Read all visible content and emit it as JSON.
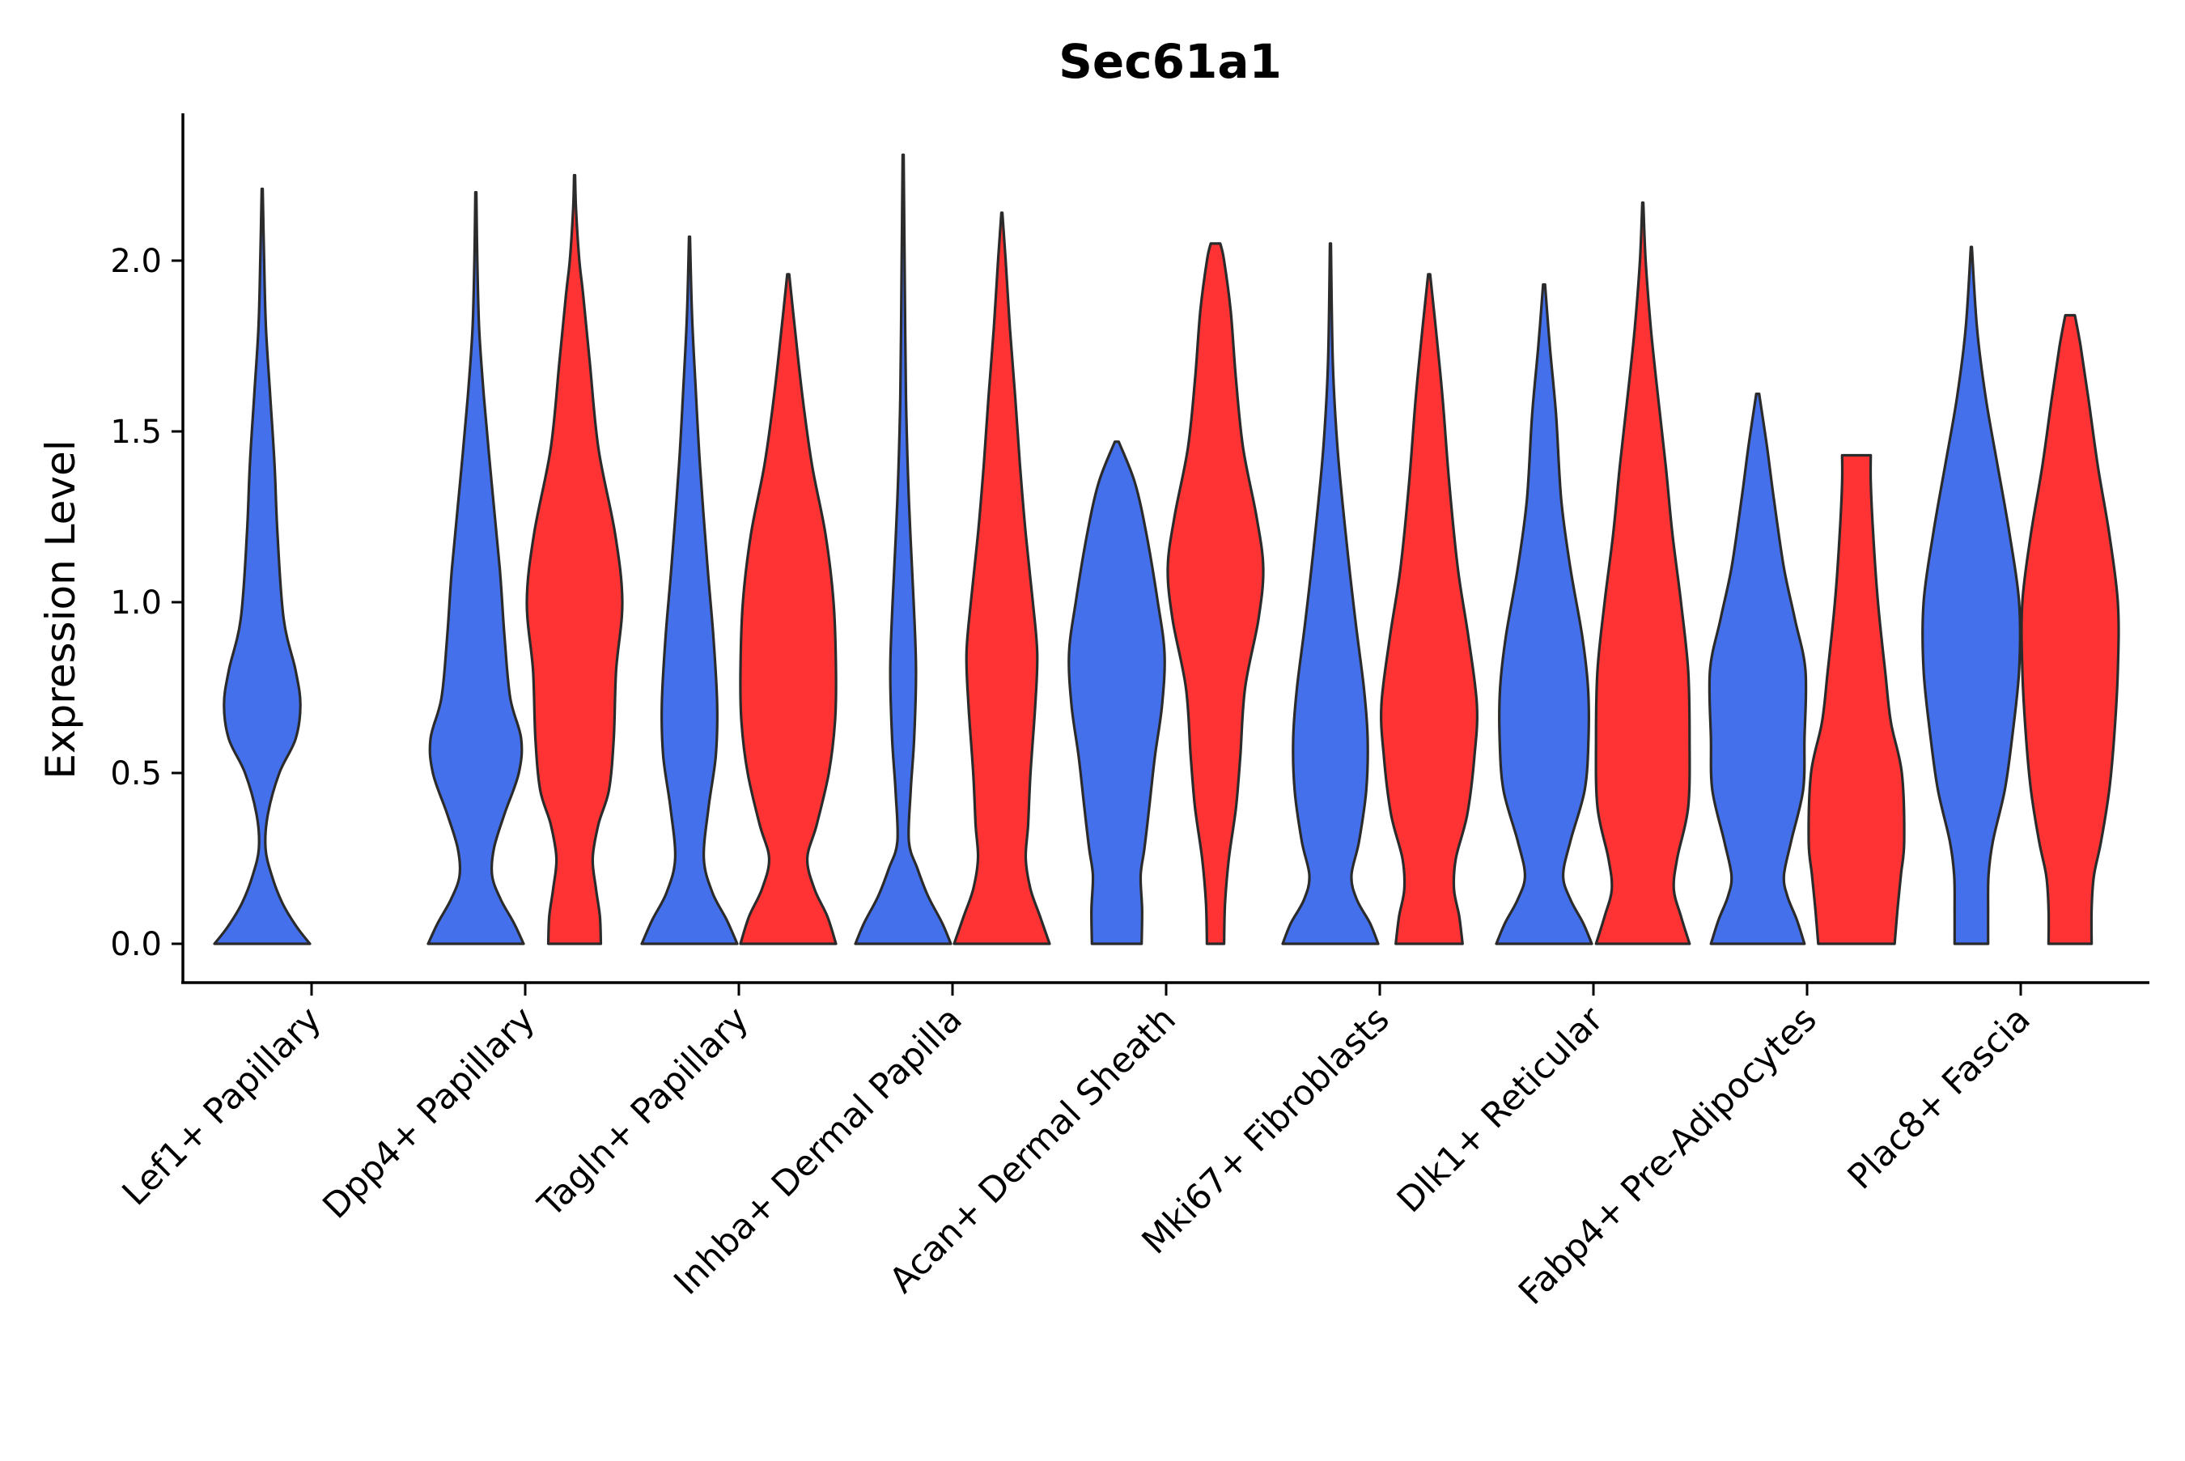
{
  "chart_data": {
    "type": "violin",
    "title": "Sec61a1",
    "xlabel": "",
    "ylabel": "Expression Level",
    "ylim": [
      -0.12,
      2.43
    ],
    "yticks": [
      0.0,
      0.5,
      1.0,
      1.5,
      2.0
    ],
    "ytick_labels": [
      "0.0",
      "0.5",
      "1.0",
      "1.5",
      "2.0"
    ],
    "grid": false,
    "legend": "none",
    "series": [
      {
        "name": "group-blue",
        "color": "#4470EC"
      },
      {
        "name": "group-red",
        "color": "#FF3333"
      }
    ],
    "categories": [
      "Lef1+ Papillary",
      "Dpp4+ Papillary",
      "Tagln+ Papillary",
      "Inhba+ Dermal Papilla",
      "Acan+ Dermal Sheath",
      "Mki67+ Fibroblasts",
      "Dlk1+ Reticular",
      "Fabp4+ Pre-Adipocytes",
      "Plac8+ Fascia"
    ],
    "violins": [
      {
        "category": "Lef1+ Papillary",
        "side": "blue",
        "max": 2.21,
        "profile": [
          [
            0.0,
            1.0
          ],
          [
            0.05,
            0.72
          ],
          [
            0.12,
            0.42
          ],
          [
            0.2,
            0.2
          ],
          [
            0.28,
            0.07
          ],
          [
            0.38,
            0.12
          ],
          [
            0.5,
            0.36
          ],
          [
            0.6,
            0.7
          ],
          [
            0.7,
            0.8
          ],
          [
            0.8,
            0.7
          ],
          [
            0.95,
            0.45
          ],
          [
            1.2,
            0.32
          ],
          [
            1.4,
            0.26
          ],
          [
            1.6,
            0.17
          ],
          [
            1.8,
            0.08
          ],
          [
            2.0,
            0.04
          ],
          [
            2.21,
            0.01
          ]
        ]
      },
      {
        "category": "Dpp4+ Papillary",
        "side": "blue",
        "max": 2.2,
        "profile": [
          [
            0.0,
            1.0
          ],
          [
            0.06,
            0.8
          ],
          [
            0.13,
            0.52
          ],
          [
            0.2,
            0.34
          ],
          [
            0.28,
            0.38
          ],
          [
            0.38,
            0.6
          ],
          [
            0.5,
            0.9
          ],
          [
            0.6,
            0.95
          ],
          [
            0.72,
            0.72
          ],
          [
            0.9,
            0.6
          ],
          [
            1.1,
            0.5
          ],
          [
            1.35,
            0.33
          ],
          [
            1.6,
            0.17
          ],
          [
            1.8,
            0.07
          ],
          [
            2.0,
            0.03
          ],
          [
            2.2,
            0.01
          ]
        ]
      },
      {
        "category": "Dpp4+ Papillary",
        "side": "red",
        "max": 2.25,
        "profile": [
          [
            0.0,
            0.55
          ],
          [
            0.08,
            0.53
          ],
          [
            0.16,
            0.45
          ],
          [
            0.25,
            0.38
          ],
          [
            0.35,
            0.5
          ],
          [
            0.45,
            0.72
          ],
          [
            0.6,
            0.82
          ],
          [
            0.8,
            0.87
          ],
          [
            1.0,
            1.0
          ],
          [
            1.2,
            0.85
          ],
          [
            1.45,
            0.5
          ],
          [
            1.7,
            0.32
          ],
          [
            1.9,
            0.18
          ],
          [
            2.0,
            0.1
          ],
          [
            2.15,
            0.03
          ],
          [
            2.25,
            0.01
          ]
        ]
      },
      {
        "category": "Tagln+ Papillary",
        "side": "blue",
        "max": 2.07,
        "profile": [
          [
            0.0,
            1.0
          ],
          [
            0.07,
            0.78
          ],
          [
            0.15,
            0.48
          ],
          [
            0.25,
            0.3
          ],
          [
            0.4,
            0.4
          ],
          [
            0.55,
            0.55
          ],
          [
            0.7,
            0.58
          ],
          [
            0.9,
            0.5
          ],
          [
            1.1,
            0.38
          ],
          [
            1.4,
            0.22
          ],
          [
            1.65,
            0.12
          ],
          [
            1.85,
            0.05
          ],
          [
            2.07,
            0.01
          ]
        ]
      },
      {
        "category": "Tagln+ Papillary",
        "side": "red",
        "max": 1.96,
        "profile": [
          [
            0.0,
            1.0
          ],
          [
            0.08,
            0.82
          ],
          [
            0.16,
            0.55
          ],
          [
            0.25,
            0.4
          ],
          [
            0.35,
            0.6
          ],
          [
            0.5,
            0.85
          ],
          [
            0.65,
            0.98
          ],
          [
            0.8,
            1.0
          ],
          [
            1.0,
            0.95
          ],
          [
            1.2,
            0.78
          ],
          [
            1.4,
            0.5
          ],
          [
            1.6,
            0.3
          ],
          [
            1.8,
            0.14
          ],
          [
            1.96,
            0.02
          ]
        ]
      },
      {
        "category": "Inhba+ Dermal Papilla",
        "side": "blue",
        "max": 2.31,
        "profile": [
          [
            0.0,
            1.0
          ],
          [
            0.06,
            0.82
          ],
          [
            0.14,
            0.52
          ],
          [
            0.22,
            0.3
          ],
          [
            0.3,
            0.12
          ],
          [
            0.45,
            0.16
          ],
          [
            0.6,
            0.23
          ],
          [
            0.8,
            0.27
          ],
          [
            1.0,
            0.22
          ],
          [
            1.3,
            0.12
          ],
          [
            1.6,
            0.06
          ],
          [
            2.0,
            0.03
          ],
          [
            2.31,
            0.01
          ]
        ]
      },
      {
        "category": "Inhba+ Dermal Papilla",
        "side": "red",
        "max": 2.14,
        "profile": [
          [
            0.0,
            1.0
          ],
          [
            0.08,
            0.8
          ],
          [
            0.16,
            0.6
          ],
          [
            0.25,
            0.5
          ],
          [
            0.35,
            0.55
          ],
          [
            0.5,
            0.6
          ],
          [
            0.7,
            0.7
          ],
          [
            0.85,
            0.74
          ],
          [
            1.0,
            0.65
          ],
          [
            1.2,
            0.5
          ],
          [
            1.4,
            0.38
          ],
          [
            1.6,
            0.28
          ],
          [
            1.8,
            0.17
          ],
          [
            2.0,
            0.08
          ],
          [
            2.14,
            0.01
          ]
        ]
      },
      {
        "category": "Acan+ Dermal Sheath",
        "side": "blue",
        "max": 1.47,
        "profile": [
          [
            0.0,
            0.52
          ],
          [
            0.1,
            0.53
          ],
          [
            0.2,
            0.5
          ],
          [
            0.28,
            0.58
          ],
          [
            0.4,
            0.68
          ],
          [
            0.55,
            0.8
          ],
          [
            0.7,
            0.95
          ],
          [
            0.85,
            1.0
          ],
          [
            1.0,
            0.86
          ],
          [
            1.2,
            0.62
          ],
          [
            1.35,
            0.38
          ],
          [
            1.47,
            0.04
          ]
        ]
      },
      {
        "category": "Acan+ Dermal Sheath",
        "side": "red",
        "max": 2.05,
        "profile": [
          [
            0.0,
            0.18
          ],
          [
            0.12,
            0.2
          ],
          [
            0.25,
            0.28
          ],
          [
            0.4,
            0.43
          ],
          [
            0.55,
            0.52
          ],
          [
            0.75,
            0.62
          ],
          [
            0.95,
            0.9
          ],
          [
            1.1,
            1.0
          ],
          [
            1.25,
            0.86
          ],
          [
            1.45,
            0.58
          ],
          [
            1.65,
            0.43
          ],
          [
            1.85,
            0.32
          ],
          [
            2.0,
            0.18
          ],
          [
            2.05,
            0.1
          ]
        ]
      },
      {
        "category": "Mki67+ Fibroblasts",
        "side": "blue",
        "max": 2.05,
        "profile": [
          [
            0.0,
            1.0
          ],
          [
            0.06,
            0.83
          ],
          [
            0.13,
            0.55
          ],
          [
            0.2,
            0.44
          ],
          [
            0.3,
            0.6
          ],
          [
            0.45,
            0.75
          ],
          [
            0.6,
            0.78
          ],
          [
            0.75,
            0.7
          ],
          [
            0.95,
            0.52
          ],
          [
            1.2,
            0.32
          ],
          [
            1.45,
            0.15
          ],
          [
            1.7,
            0.05
          ],
          [
            2.05,
            0.01
          ]
        ]
      },
      {
        "category": "Mki67+ Fibroblasts",
        "side": "red",
        "max": 1.96,
        "profile": [
          [
            0.0,
            0.7
          ],
          [
            0.08,
            0.63
          ],
          [
            0.16,
            0.52
          ],
          [
            0.25,
            0.56
          ],
          [
            0.38,
            0.8
          ],
          [
            0.55,
            0.95
          ],
          [
            0.7,
            1.0
          ],
          [
            0.9,
            0.82
          ],
          [
            1.1,
            0.6
          ],
          [
            1.35,
            0.42
          ],
          [
            1.6,
            0.28
          ],
          [
            1.8,
            0.14
          ],
          [
            1.96,
            0.02
          ]
        ]
      },
      {
        "category": "Dlk1+ Reticular",
        "side": "blue",
        "max": 1.93,
        "profile": [
          [
            0.0,
            1.0
          ],
          [
            0.06,
            0.82
          ],
          [
            0.13,
            0.55
          ],
          [
            0.2,
            0.4
          ],
          [
            0.3,
            0.55
          ],
          [
            0.45,
            0.85
          ],
          [
            0.6,
            0.93
          ],
          [
            0.75,
            0.92
          ],
          [
            0.9,
            0.8
          ],
          [
            1.1,
            0.55
          ],
          [
            1.3,
            0.36
          ],
          [
            1.55,
            0.25
          ],
          [
            1.75,
            0.12
          ],
          [
            1.93,
            0.02
          ]
        ]
      },
      {
        "category": "Dlk1+ Reticular",
        "side": "red",
        "max": 2.17,
        "profile": [
          [
            0.0,
            0.98
          ],
          [
            0.08,
            0.8
          ],
          [
            0.16,
            0.65
          ],
          [
            0.25,
            0.72
          ],
          [
            0.4,
            0.95
          ],
          [
            0.6,
            0.98
          ],
          [
            0.8,
            0.95
          ],
          [
            1.0,
            0.8
          ],
          [
            1.2,
            0.62
          ],
          [
            1.4,
            0.48
          ],
          [
            1.6,
            0.32
          ],
          [
            1.8,
            0.17
          ],
          [
            2.0,
            0.06
          ],
          [
            2.17,
            0.01
          ]
        ]
      },
      {
        "category": "Fabp4+ Pre-Adipocytes",
        "side": "blue",
        "max": 1.61,
        "profile": [
          [
            0.0,
            0.98
          ],
          [
            0.07,
            0.82
          ],
          [
            0.14,
            0.62
          ],
          [
            0.2,
            0.55
          ],
          [
            0.3,
            0.7
          ],
          [
            0.45,
            0.95
          ],
          [
            0.6,
            0.98
          ],
          [
            0.8,
            1.0
          ],
          [
            0.95,
            0.78
          ],
          [
            1.1,
            0.55
          ],
          [
            1.3,
            0.34
          ],
          [
            1.45,
            0.2
          ],
          [
            1.61,
            0.03
          ]
        ]
      },
      {
        "category": "Fabp4+ Pre-Adipocytes",
        "side": "red",
        "max": 1.43,
        "profile": [
          [
            0.0,
            0.8
          ],
          [
            0.1,
            0.86
          ],
          [
            0.2,
            0.93
          ],
          [
            0.3,
            1.0
          ],
          [
            0.5,
            0.95
          ],
          [
            0.65,
            0.72
          ],
          [
            0.8,
            0.6
          ],
          [
            1.0,
            0.45
          ],
          [
            1.2,
            0.35
          ],
          [
            1.35,
            0.3
          ],
          [
            1.43,
            0.3
          ]
        ]
      },
      {
        "category": "Plac8+ Fascia",
        "side": "blue",
        "max": 2.04,
        "profile": [
          [
            0.0,
            0.35
          ],
          [
            0.1,
            0.35
          ],
          [
            0.2,
            0.36
          ],
          [
            0.3,
            0.45
          ],
          [
            0.45,
            0.7
          ],
          [
            0.6,
            0.85
          ],
          [
            0.8,
            1.0
          ],
          [
            1.0,
            1.0
          ],
          [
            1.2,
            0.8
          ],
          [
            1.4,
            0.55
          ],
          [
            1.6,
            0.3
          ],
          [
            1.8,
            0.12
          ],
          [
            2.04,
            0.01
          ]
        ]
      },
      {
        "category": "Plac8+ Fascia",
        "side": "red",
        "max": 1.84,
        "profile": [
          [
            0.0,
            0.45
          ],
          [
            0.1,
            0.45
          ],
          [
            0.2,
            0.5
          ],
          [
            0.3,
            0.65
          ],
          [
            0.45,
            0.82
          ],
          [
            0.6,
            0.92
          ],
          [
            0.8,
            1.0
          ],
          [
            1.0,
            1.0
          ],
          [
            1.2,
            0.82
          ],
          [
            1.4,
            0.58
          ],
          [
            1.6,
            0.38
          ],
          [
            1.75,
            0.22
          ],
          [
            1.84,
            0.1
          ]
        ]
      }
    ]
  }
}
